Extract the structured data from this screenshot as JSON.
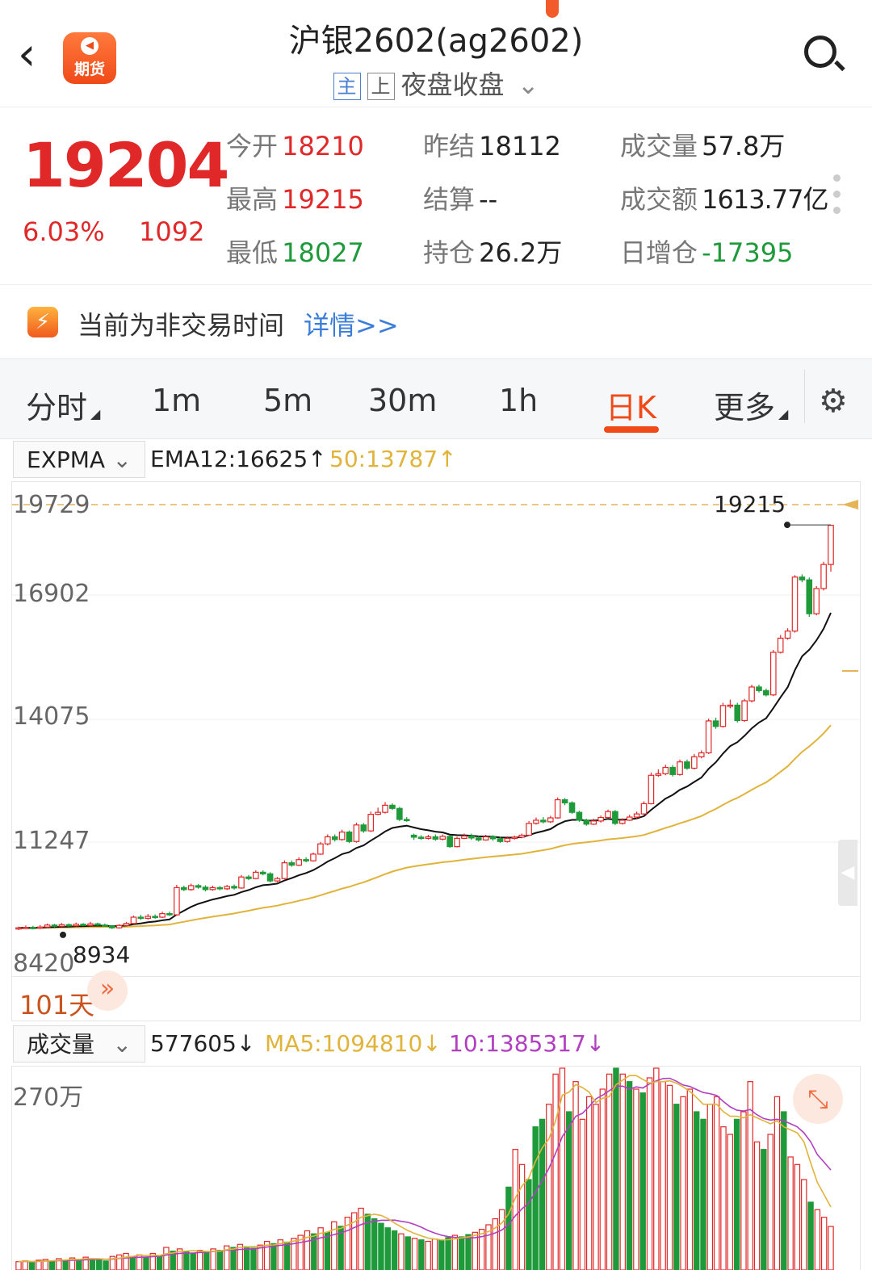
{
  "header": {
    "back_label": "‹",
    "logo_text": "期货",
    "title": "沪银2602(ag2602)",
    "tag_main": "主",
    "tag_up": "上",
    "session": "夜盘收盘",
    "session_arrow": "⌄"
  },
  "quote": {
    "price": "19204",
    "change_pct": "6.03%",
    "change": "1092",
    "open_label": "今开",
    "open": "18210",
    "high_label": "最高",
    "high": "19215",
    "low_label": "最低",
    "low": "18027",
    "prev_settle_label": "昨结",
    "prev_settle": "18112",
    "settle_label": "结算",
    "settle": "--",
    "oi_label": "持仓",
    "oi": "26.2万",
    "volume_label": "成交量",
    "volume": "57.8万",
    "turnover_label": "成交额",
    "turnover": "1613.77亿",
    "oi_change_label": "日增仓",
    "oi_change": "-17395"
  },
  "notice": {
    "icon": "⚡",
    "text": "当前为非交易时间",
    "link": "详情>>"
  },
  "tabs": [
    {
      "label": "分时"
    },
    {
      "label": "1m"
    },
    {
      "label": "5m"
    },
    {
      "label": "30m"
    },
    {
      "label": "1h"
    },
    {
      "label": "日K"
    },
    {
      "label": "更多"
    }
  ],
  "tab_triangle": "◢",
  "settings_icon": "⚙",
  "expma": {
    "selector": "EXPMA",
    "selector_arrow": "⌄",
    "ema12": "EMA12:16625↑",
    "ema50": "50:13787↑"
  },
  "volume_panel": {
    "selector": "成交量",
    "selector_arrow": "⌄",
    "vol": "577605↓",
    "ma5": "MA5:1094810↓",
    "ma10": "10:1385317↓",
    "ytick": "270万",
    "expand_icon": "⤡"
  },
  "days_label": "101天",
  "days_arrow": "»",
  "side_handle": "◀",
  "colors": {
    "up": "#e02828",
    "down": "#1f9a3a",
    "accent": "#f04a18",
    "ema50": "#e0b33a",
    "ema12": "#111111",
    "ma10": "#b040c0"
  },
  "chart_data": {
    "type": "candlestick",
    "y_ticks": [
      "19729",
      "16902",
      "14075",
      "11247",
      "8420"
    ],
    "ylim": [
      8420,
      19729
    ],
    "max_label": "19215",
    "min_label": "8934",
    "period_days": "101",
    "candles": [
      {
        "o": 8960,
        "c": 8990,
        "h": 9020,
        "l": 8934
      },
      {
        "o": 8990,
        "c": 9000,
        "h": 9050,
        "l": 8960
      },
      {
        "o": 9000,
        "c": 8980,
        "h": 9040,
        "l": 8950
      },
      {
        "o": 8980,
        "c": 9010,
        "h": 9060,
        "l": 8960
      },
      {
        "o": 9010,
        "c": 9060,
        "h": 9100,
        "l": 8990
      },
      {
        "o": 9060,
        "c": 9030,
        "h": 9090,
        "l": 9000
      },
      {
        "o": 9030,
        "c": 9070,
        "h": 9110,
        "l": 9010
      },
      {
        "o": 9070,
        "c": 9040,
        "h": 9100,
        "l": 9010
      },
      {
        "o": 9040,
        "c": 9080,
        "h": 9120,
        "l": 9020
      },
      {
        "o": 9080,
        "c": 9050,
        "h": 9110,
        "l": 9030
      },
      {
        "o": 9050,
        "c": 9090,
        "h": 9140,
        "l": 9030
      },
      {
        "o": 9090,
        "c": 9060,
        "h": 9120,
        "l": 9040
      },
      {
        "o": 9060,
        "c": 9040,
        "h": 9100,
        "l": 9020
      },
      {
        "o": 9040,
        "c": 8990,
        "h": 9060,
        "l": 8960
      },
      {
        "o": 8990,
        "c": 9050,
        "h": 9080,
        "l": 8970
      },
      {
        "o": 9050,
        "c": 9100,
        "h": 9140,
        "l": 9030
      },
      {
        "o": 9100,
        "c": 9260,
        "h": 9300,
        "l": 9080
      },
      {
        "o": 9260,
        "c": 9230,
        "h": 9320,
        "l": 9190
      },
      {
        "o": 9230,
        "c": 9280,
        "h": 9340,
        "l": 9200
      },
      {
        "o": 9280,
        "c": 9260,
        "h": 9330,
        "l": 9220
      },
      {
        "o": 9260,
        "c": 9350,
        "h": 9400,
        "l": 9240
      },
      {
        "o": 9350,
        "c": 9320,
        "h": 9400,
        "l": 9290
      },
      {
        "o": 9320,
        "c": 10010,
        "h": 10080,
        "l": 9300
      },
      {
        "o": 10010,
        "c": 9960,
        "h": 10060,
        "l": 9920
      },
      {
        "o": 9960,
        "c": 10060,
        "h": 10110,
        "l": 9930
      },
      {
        "o": 10060,
        "c": 10020,
        "h": 10100,
        "l": 9980
      },
      {
        "o": 10020,
        "c": 9960,
        "h": 10070,
        "l": 9910
      },
      {
        "o": 9960,
        "c": 10010,
        "h": 10060,
        "l": 9930
      },
      {
        "o": 10010,
        "c": 9980,
        "h": 10050,
        "l": 9940
      },
      {
        "o": 9980,
        "c": 10040,
        "h": 10080,
        "l": 9950
      },
      {
        "o": 10040,
        "c": 10000,
        "h": 10090,
        "l": 9960
      },
      {
        "o": 10000,
        "c": 10280,
        "h": 10330,
        "l": 9980
      },
      {
        "o": 10280,
        "c": 10240,
        "h": 10330,
        "l": 10200
      },
      {
        "o": 10240,
        "c": 10400,
        "h": 10450,
        "l": 10220
      },
      {
        "o": 10400,
        "c": 10360,
        "h": 10450,
        "l": 10320
      },
      {
        "o": 10360,
        "c": 10180,
        "h": 10400,
        "l": 10140
      },
      {
        "o": 10180,
        "c": 10240,
        "h": 10280,
        "l": 10150
      },
      {
        "o": 10240,
        "c": 10640,
        "h": 10700,
        "l": 10220
      },
      {
        "o": 10640,
        "c": 10580,
        "h": 10700,
        "l": 10540
      },
      {
        "o": 10580,
        "c": 10720,
        "h": 10780,
        "l": 10560
      },
      {
        "o": 10720,
        "c": 10690,
        "h": 10780,
        "l": 10650
      },
      {
        "o": 10690,
        "c": 10860,
        "h": 10900,
        "l": 10670
      },
      {
        "o": 10860,
        "c": 11120,
        "h": 11170,
        "l": 10840
      },
      {
        "o": 11120,
        "c": 11300,
        "h": 11360,
        "l": 11080
      },
      {
        "o": 11300,
        "c": 11230,
        "h": 11360,
        "l": 11180
      },
      {
        "o": 11230,
        "c": 11420,
        "h": 11480,
        "l": 11200
      },
      {
        "o": 11420,
        "c": 11180,
        "h": 11460,
        "l": 11140
      },
      {
        "o": 11180,
        "c": 11600,
        "h": 11660,
        "l": 11150
      },
      {
        "o": 11600,
        "c": 11450,
        "h": 11650,
        "l": 11400
      },
      {
        "o": 11450,
        "c": 11870,
        "h": 11940,
        "l": 11420
      },
      {
        "o": 11870,
        "c": 11920,
        "h": 12040,
        "l": 11850
      },
      {
        "o": 11920,
        "c": 12100,
        "h": 12180,
        "l": 11890
      },
      {
        "o": 12100,
        "c": 12020,
        "h": 12150,
        "l": 11980
      },
      {
        "o": 12020,
        "c": 11740,
        "h": 12060,
        "l": 11700
      },
      {
        "o": 11740,
        "c": 11710,
        "h": 11800,
        "l": 11680
      },
      {
        "o": 11340,
        "c": 11290,
        "h": 11380,
        "l": 11220
      },
      {
        "o": 11290,
        "c": 11260,
        "h": 11340,
        "l": 11220
      },
      {
        "o": 11260,
        "c": 11300,
        "h": 11350,
        "l": 11230
      },
      {
        "o": 11300,
        "c": 11240,
        "h": 11360,
        "l": 11200
      },
      {
        "o": 11240,
        "c": 11310,
        "h": 11360,
        "l": 11210
      },
      {
        "o": 11310,
        "c": 11050,
        "h": 11340,
        "l": 11020
      },
      {
        "o": 11050,
        "c": 11260,
        "h": 11300,
        "l": 11030
      },
      {
        "o": 11260,
        "c": 11320,
        "h": 11380,
        "l": 11240
      },
      {
        "o": 11320,
        "c": 11270,
        "h": 11380,
        "l": 11220
      },
      {
        "o": 11270,
        "c": 11220,
        "h": 11320,
        "l": 11180
      },
      {
        "o": 11220,
        "c": 11300,
        "h": 11350,
        "l": 11200
      },
      {
        "o": 11300,
        "c": 11250,
        "h": 11340,
        "l": 11200
      },
      {
        "o": 11250,
        "c": 11180,
        "h": 11300,
        "l": 11140
      },
      {
        "o": 11180,
        "c": 11260,
        "h": 11310,
        "l": 11150
      },
      {
        "o": 11260,
        "c": 11290,
        "h": 11330,
        "l": 11230
      },
      {
        "o": 11290,
        "c": 11340,
        "h": 11380,
        "l": 11260
      },
      {
        "o": 11340,
        "c": 11640,
        "h": 11700,
        "l": 11320
      },
      {
        "o": 11640,
        "c": 11720,
        "h": 11790,
        "l": 11610
      },
      {
        "o": 11720,
        "c": 11680,
        "h": 11800,
        "l": 11640
      },
      {
        "o": 11680,
        "c": 11780,
        "h": 11830,
        "l": 11650
      },
      {
        "o": 11780,
        "c": 12240,
        "h": 12300,
        "l": 11760
      },
      {
        "o": 12240,
        "c": 12160,
        "h": 12280,
        "l": 12100
      },
      {
        "o": 12160,
        "c": 11920,
        "h": 12200,
        "l": 11880
      },
      {
        "o": 11920,
        "c": 11720,
        "h": 11960,
        "l": 11680
      },
      {
        "o": 11720,
        "c": 11620,
        "h": 11760,
        "l": 11580
      },
      {
        "o": 11620,
        "c": 11700,
        "h": 11760,
        "l": 11600
      },
      {
        "o": 11700,
        "c": 11790,
        "h": 11840,
        "l": 11660
      },
      {
        "o": 11790,
        "c": 11940,
        "h": 11990,
        "l": 11760
      },
      {
        "o": 11940,
        "c": 11640,
        "h": 11980,
        "l": 11600
      },
      {
        "o": 11640,
        "c": 11720,
        "h": 11770,
        "l": 11610
      },
      {
        "o": 11720,
        "c": 11800,
        "h": 11860,
        "l": 11700
      },
      {
        "o": 11800,
        "c": 11880,
        "h": 11940,
        "l": 11760
      },
      {
        "o": 11880,
        "c": 12140,
        "h": 12200,
        "l": 11860
      },
      {
        "o": 12140,
        "c": 12860,
        "h": 12930,
        "l": 12120
      },
      {
        "o": 12860,
        "c": 12900,
        "h": 13010,
        "l": 12820
      },
      {
        "o": 12900,
        "c": 13060,
        "h": 13130,
        "l": 12860
      },
      {
        "o": 13060,
        "c": 12880,
        "h": 13120,
        "l": 12830
      },
      {
        "o": 12880,
        "c": 13200,
        "h": 13260,
        "l": 12850
      },
      {
        "o": 13200,
        "c": 13040,
        "h": 13260,
        "l": 13000
      },
      {
        "o": 13040,
        "c": 13330,
        "h": 13400,
        "l": 13010
      },
      {
        "o": 13330,
        "c": 13430,
        "h": 13490,
        "l": 13290
      },
      {
        "o": 13430,
        "c": 14240,
        "h": 14300,
        "l": 13400
      },
      {
        "o": 14240,
        "c": 14100,
        "h": 14320,
        "l": 14040
      },
      {
        "o": 14100,
        "c": 14630,
        "h": 14700,
        "l": 14070
      },
      {
        "o": 14630,
        "c": 14640,
        "h": 14780,
        "l": 14560
      },
      {
        "o": 14640,
        "c": 14250,
        "h": 14700,
        "l": 14200
      },
      {
        "o": 14250,
        "c": 14750,
        "h": 14800,
        "l": 14220
      },
      {
        "o": 14750,
        "c": 15100,
        "h": 15160,
        "l": 14710
      },
      {
        "o": 15100,
        "c": 15010,
        "h": 15160,
        "l": 14960
      },
      {
        "o": 15010,
        "c": 14900,
        "h": 15060,
        "l": 14860
      },
      {
        "o": 14900,
        "c": 15980,
        "h": 16040,
        "l": 14870
      },
      {
        "o": 15980,
        "c": 16340,
        "h": 16420,
        "l": 15950
      },
      {
        "o": 16340,
        "c": 16520,
        "h": 16590,
        "l": 16300
      },
      {
        "o": 16520,
        "c": 17890,
        "h": 17940,
        "l": 16480
      },
      {
        "o": 17890,
        "c": 17820,
        "h": 17960,
        "l": 17760
      },
      {
        "o": 17820,
        "c": 16960,
        "h": 17880,
        "l": 16880
      },
      {
        "o": 16960,
        "c": 17600,
        "h": 17660,
        "l": 16920
      },
      {
        "o": 17600,
        "c": 18210,
        "h": 18280,
        "l": 17550
      },
      {
        "o": 18210,
        "c": 19204,
        "h": 19215,
        "l": 18027
      }
    ],
    "volume": {
      "ylim": [
        0,
        2700000
      ],
      "up": [
        true,
        true,
        false,
        true,
        true,
        false,
        true,
        false,
        true,
        false,
        true,
        false,
        false,
        false,
        true,
        true,
        true,
        false,
        true,
        false,
        true,
        false,
        true,
        false,
        true,
        false,
        false,
        true,
        false,
        true,
        false,
        true,
        false,
        true,
        false,
        false,
        true,
        true,
        false,
        true,
        false,
        true,
        true,
        true,
        false,
        true,
        false,
        true,
        false,
        true,
        true,
        true,
        false,
        false,
        false,
        false,
        false,
        true,
        false,
        true,
        false,
        true,
        true,
        false,
        false,
        true,
        false,
        false,
        true,
        true,
        true,
        true,
        true,
        false,
        true,
        true,
        false,
        false,
        false,
        true,
        true,
        true,
        false,
        true,
        true,
        true,
        true,
        true,
        true,
        false,
        true,
        false,
        true,
        false,
        true,
        true,
        true,
        true,
        false,
        true,
        true,
        false,
        false,
        true,
        true,
        true,
        true,
        false,
        true,
        true,
        true,
        false,
        true,
        true,
        false,
        true,
        true,
        true,
        false,
        true,
        true,
        true
      ],
      "values": [
        110000,
        120000,
        100000,
        130000,
        140000,
        120000,
        150000,
        130000,
        160000,
        140000,
        170000,
        150000,
        130000,
        120000,
        180000,
        200000,
        220000,
        180000,
        200000,
        170000,
        220000,
        190000,
        300000,
        250000,
        280000,
        240000,
        220000,
        260000,
        230000,
        280000,
        260000,
        320000,
        300000,
        340000,
        310000,
        290000,
        330000,
        380000,
        350000,
        400000,
        370000,
        420000,
        460000,
        520000,
        480000,
        560000,
        500000,
        640000,
        580000,
        700000,
        760000,
        820000,
        740000,
        680000,
        620000,
        560000,
        520000,
        480000,
        440000,
        420000,
        400000,
        380000,
        410000,
        390000,
        430000,
        460000,
        440000,
        470000,
        500000,
        540000,
        600000,
        680000,
        800000,
        1100000,
        1600000,
        1400000,
        1200000,
        1900000,
        2000000,
        2200000,
        2600000,
        2900000,
        2100000,
        2500000,
        2000000,
        2300000,
        2200000,
        2400000,
        2600000,
        2800000,
        2600000,
        2500000,
        2400000,
        2350000,
        2550000,
        2700000,
        2500000,
        2450000,
        2200000,
        2300000,
        2400000,
        2100000,
        2000000,
        2200000,
        2300000,
        1900000,
        1800000,
        2000000,
        2100000,
        2500000,
        1700000,
        1600000,
        1800000,
        2300000,
        2100000,
        1500000,
        1400000,
        1200000,
        900000,
        800000,
        700000,
        577605
      ]
    }
  }
}
